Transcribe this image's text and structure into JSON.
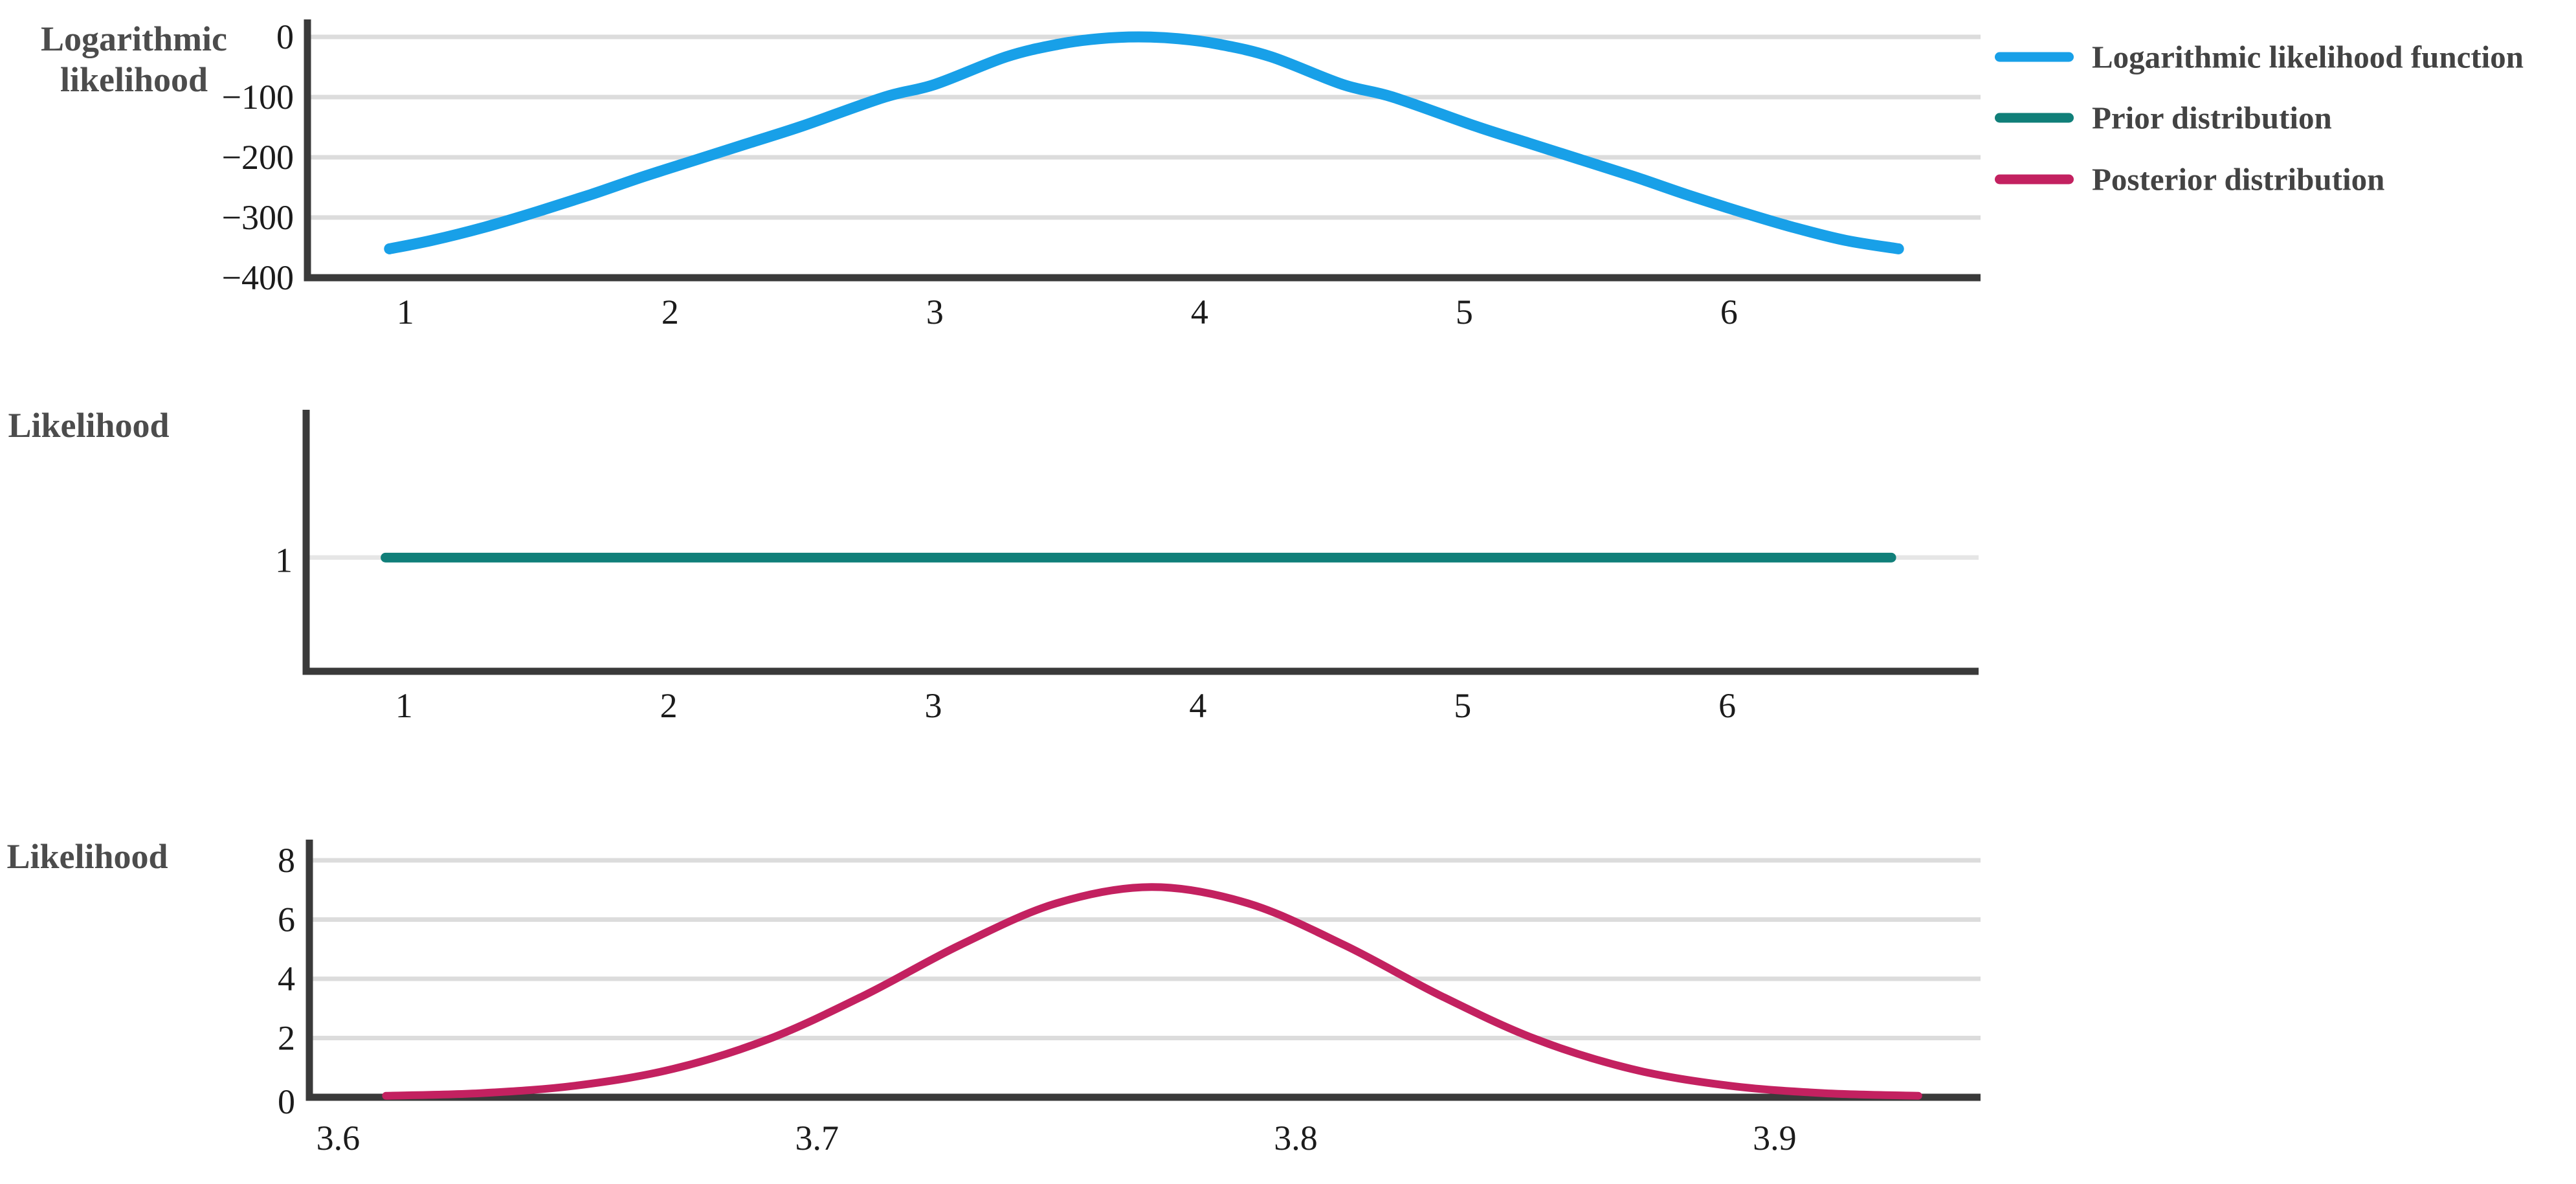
{
  "figure": {
    "background": "#ffffff",
    "axis_color": "#3a3a3a",
    "grid_color": "#dcdcdc",
    "prior_grid_color": "#e6e6e6",
    "tick_text_color": "#1b1b1b",
    "label_text_color": "#4c4c4c",
    "legend": {
      "position": "top-right-outside",
      "items": [
        {
          "label": "Logarithmic likelihood function",
          "color": "#18a0e8",
          "swatch": "line"
        },
        {
          "label": "Prior distribution",
          "color": "#107f79",
          "swatch": "line"
        },
        {
          "label": "Posterior distribution",
          "color": "#c32160",
          "swatch": "line"
        }
      ]
    }
  },
  "chart_data": [
    {
      "id": "log-likelihood-panel",
      "type": "line",
      "title": "",
      "ylabel": "Logarithmic likelihood",
      "xlabel": "",
      "xlim": [
        0.63,
        6.95
      ],
      "ylim": [
        -400,
        29
      ],
      "xticks": [
        1,
        2,
        3,
        4,
        5,
        6
      ],
      "yticks": [
        0,
        -100,
        -200,
        -300,
        -400
      ],
      "grid": "horizontal",
      "series": [
        {
          "name": "Logarithmic likelihood function",
          "color": "#18a0e8",
          "stroke_width": 17,
          "peak": {
            "x": 3.77,
            "y": 0
          },
          "x": [
            0.94,
            1.1,
            1.3,
            1.5,
            1.7,
            1.9,
            2.1,
            2.3,
            2.5,
            2.81,
            3.0,
            3.27,
            3.47,
            3.62,
            3.77,
            3.92,
            4.07,
            4.27,
            4.54,
            4.73,
            5.04,
            5.24,
            5.44,
            5.64,
            5.84,
            6.04,
            6.24,
            6.44,
            6.64
          ],
          "y": [
            -352,
            -338,
            -316,
            -290,
            -262,
            -232,
            -204,
            -176,
            -148,
            -100,
            -79,
            -33,
            -12,
            -3,
            0,
            -3,
            -12,
            -33,
            -79,
            -100,
            -148,
            -176,
            -204,
            -232,
            -262,
            -290,
            -316,
            -338,
            -352
          ]
        }
      ]
    },
    {
      "id": "prior-panel",
      "type": "line",
      "title": "",
      "ylabel": "Likelihood",
      "xlabel": "",
      "xlim": [
        0.63,
        6.95
      ],
      "ylim": [
        0,
        2.3
      ],
      "xticks": [
        1,
        2,
        3,
        4,
        5,
        6
      ],
      "yticks": [
        1
      ],
      "grid": "y-equals-1-line",
      "series": [
        {
          "name": "Prior distribution",
          "color": "#107f79",
          "stroke_width": 15,
          "x": [
            0.93,
            6.62
          ],
          "y": [
            1,
            1
          ]
        }
      ]
    },
    {
      "id": "posterior-panel",
      "type": "line",
      "title": "",
      "ylabel": "Likelihood",
      "xlabel": "",
      "xlim": [
        3.594,
        3.943
      ],
      "ylim": [
        0,
        8.7
      ],
      "xticks": [
        3.6,
        3.7,
        3.8,
        3.9
      ],
      "yticks": [
        0,
        2,
        4,
        6,
        8
      ],
      "grid": "horizontal",
      "series": [
        {
          "name": "Posterior distribution",
          "color": "#c32160",
          "stroke_width": 12,
          "peak": {
            "x": 3.77,
            "y": 7.1
          },
          "x": [
            3.61,
            3.63,
            3.65,
            3.67,
            3.69,
            3.71,
            3.73,
            3.75,
            3.77,
            3.79,
            3.81,
            3.83,
            3.85,
            3.87,
            3.89,
            3.91,
            3.93
          ],
          "y": [
            0.05,
            0.14,
            0.4,
            0.96,
            1.97,
            3.45,
            5.15,
            6.55,
            7.1,
            6.55,
            5.15,
            3.45,
            1.97,
            0.96,
            0.4,
            0.14,
            0.05
          ]
        }
      ]
    }
  ]
}
